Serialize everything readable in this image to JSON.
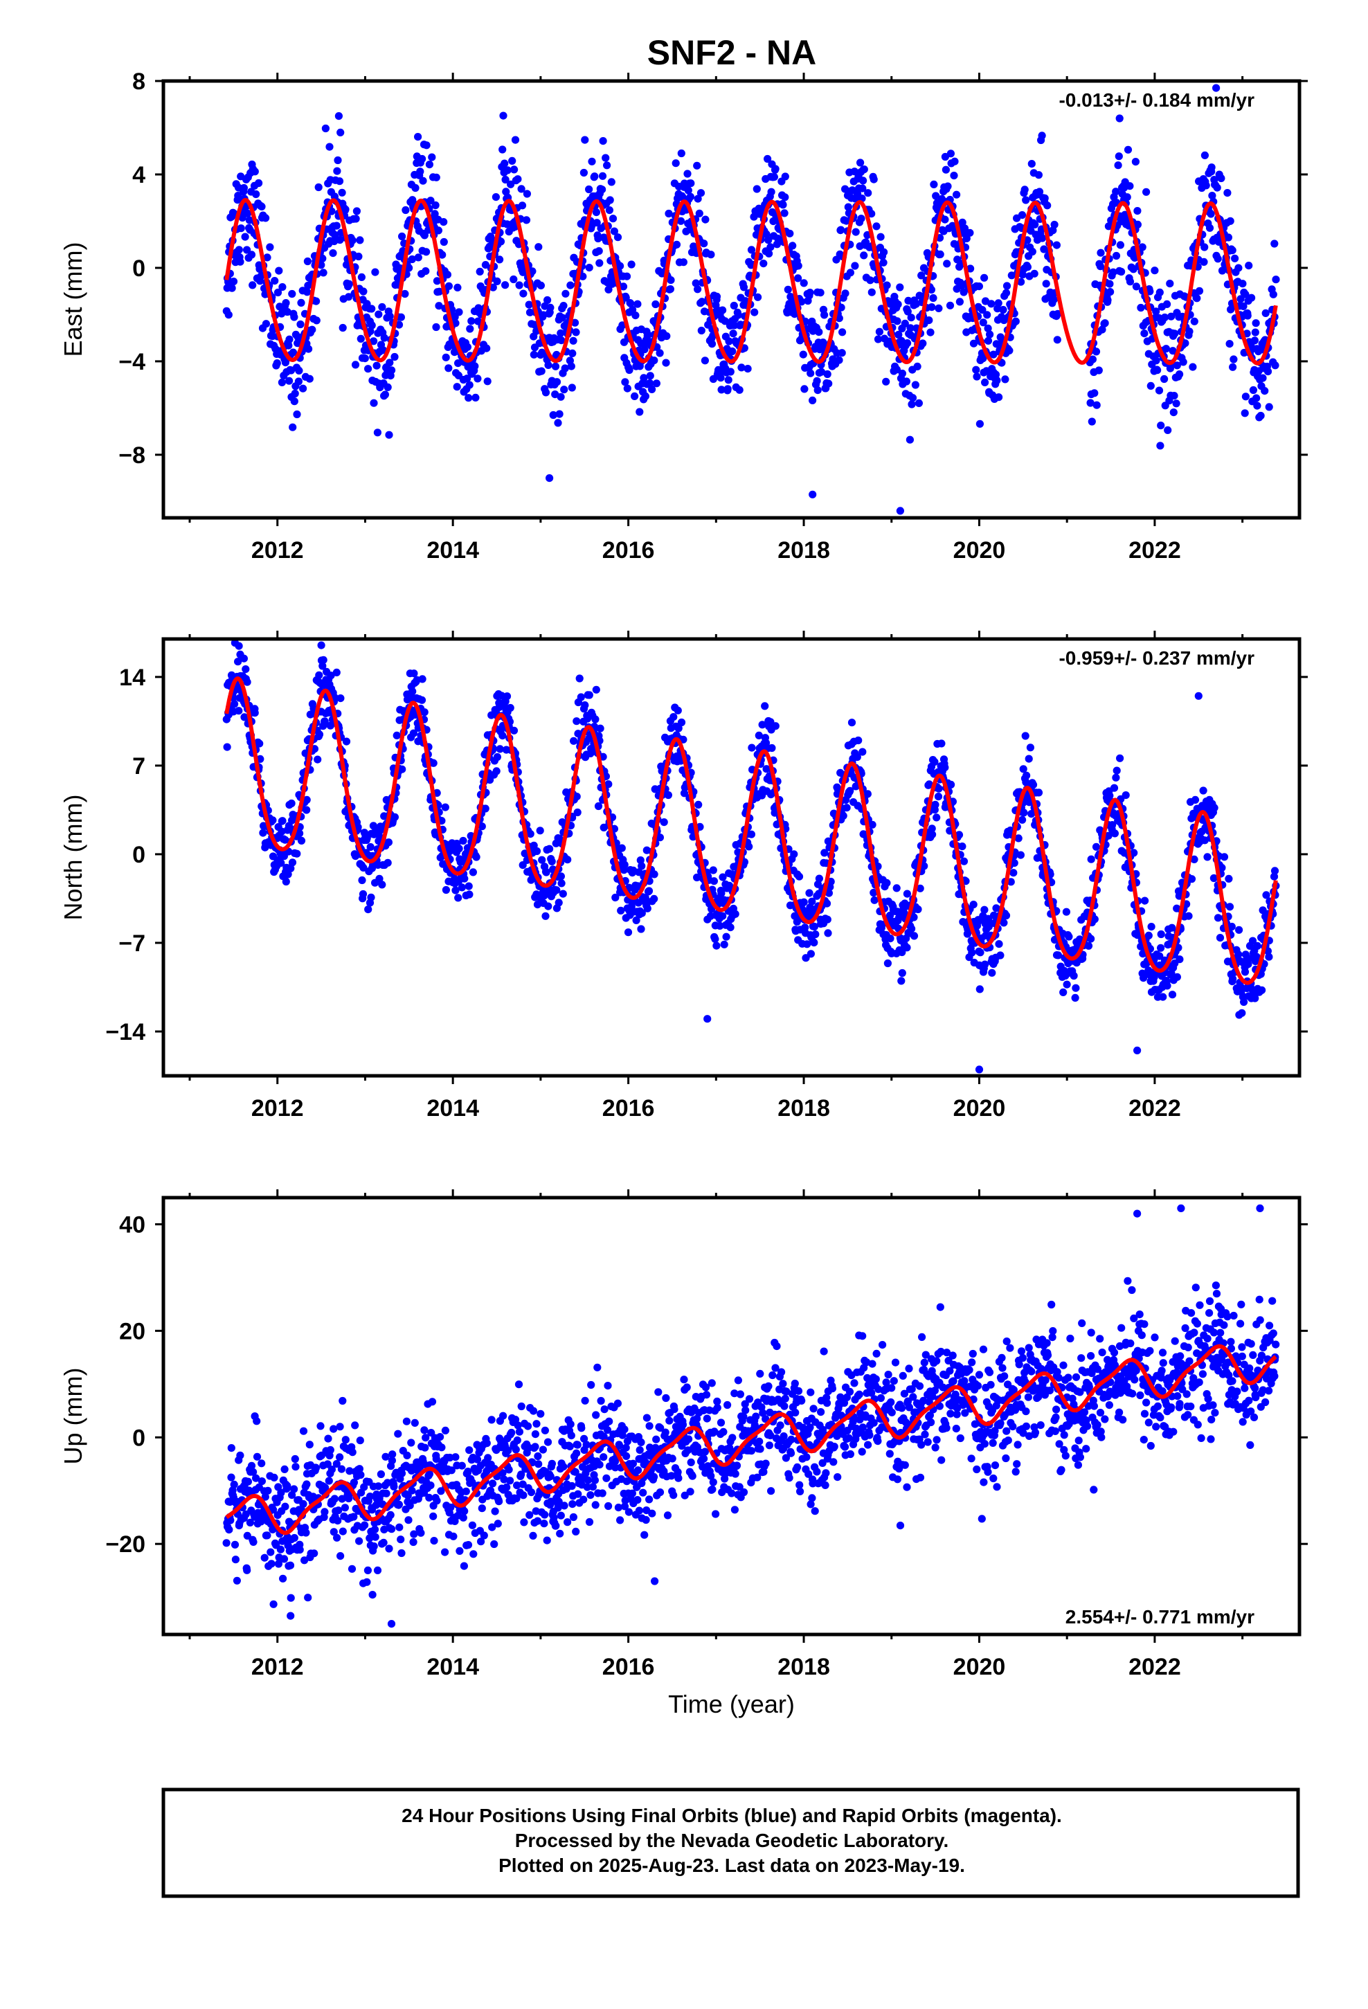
{
  "colors": {
    "points": "#0000ff",
    "fit": "#ff0000",
    "frame": "#000000",
    "background": "#ffffff"
  },
  "figure_title": "SNF2 - NA",
  "footer": {
    "lines": [
      "24 Hour Positions Using Final Orbits (blue) and Rapid Orbits (magenta).",
      "Processed by the Nevada Geodetic Laboratory.",
      "Plotted on 2025-Aug-23. Last data on 2023-May-19."
    ]
  },
  "chart_data": [
    {
      "type": "scatter",
      "panel": "east",
      "title": "SNF2 - NA",
      "xlabel": "",
      "ylabel": "East (mm)",
      "xlim": [
        2010.7,
        2023.65
      ],
      "ylim": [
        -10.7,
        8
      ],
      "xticks": [
        2012,
        2014,
        2016,
        2018,
        2020,
        2022
      ],
      "yticks": [
        -8,
        -4,
        0,
        4,
        8
      ],
      "rate_text": "-0.013+/- 0.184 mm/yr",
      "rate_position": "top-right",
      "data_range": [
        2011.42,
        2023.38
      ],
      "fit": {
        "offset": -0.75,
        "rate": -0.013,
        "annual_amp": 3.4,
        "peak_time": 0.65,
        "semiannual_amp": 0.3,
        "semiannual_peak": 0.1
      },
      "scatter_sd": 1.3,
      "outliers": [
        [
          2012.7,
          6.5
        ],
        [
          2019.1,
          -10.4
        ],
        [
          2018.1,
          -9.7
        ],
        [
          2022.7,
          7.7
        ],
        [
          2015.1,
          -9.0
        ],
        [
          2021.6,
          6.4
        ]
      ]
    },
    {
      "type": "scatter",
      "panel": "north",
      "title": "",
      "xlabel": "",
      "ylabel": "North (mm)",
      "xlim": [
        2010.7,
        2023.65
      ],
      "ylim": [
        -17.5,
        17
      ],
      "xticks": [
        2012,
        2014,
        2016,
        2018,
        2020,
        2022
      ],
      "yticks": [
        -14,
        -7,
        0,
        7,
        14
      ],
      "rate_text": "-0.959+/- 0.237 mm/yr",
      "rate_position": "top-right",
      "data_range": [
        2011.42,
        2023.38
      ],
      "fit": {
        "offset": 6.7,
        "rate": -0.959,
        "ref_year": 2011.42,
        "annual_amp": 6.5,
        "peak_time": 0.55,
        "semiannual_amp": 0.8,
        "semiannual_peak": 0.05
      },
      "scatter_sd": 1.5,
      "outliers": [
        [
          2020.0,
          -17.0
        ],
        [
          2021.8,
          -15.5
        ],
        [
          2016.9,
          -13.0
        ],
        [
          2022.5,
          12.5
        ],
        [
          2012.5,
          16.5
        ]
      ]
    },
    {
      "type": "scatter",
      "panel": "up",
      "title": "",
      "xlabel": "Time (year)",
      "ylabel": "Up (mm)",
      "xlim": [
        2010.7,
        2023.65
      ],
      "ylim": [
        -37,
        45
      ],
      "xticks": [
        2012,
        2014,
        2016,
        2018,
        2020,
        2022
      ],
      "yticks": [
        -20,
        0,
        20,
        40
      ],
      "rate_text": "2.554+/- 0.771 mm/yr",
      "rate_position": "bottom-right",
      "data_range": [
        2011.42,
        2023.38
      ],
      "fit": {
        "offset": -15.5,
        "rate": 2.554,
        "ref_year": 2011.42,
        "annual_amp": 3.5,
        "peak_time": 0.65,
        "semiannual_amp": 1.0,
        "semiannual_peak": 0.3
      },
      "scatter_sd": 5.5,
      "outliers": [
        [
          2013.3,
          -35.0
        ],
        [
          2012.15,
          -33.5
        ],
        [
          2022.3,
          43.0
        ],
        [
          2023.2,
          43.0
        ],
        [
          2016.3,
          -27.0
        ],
        [
          2021.8,
          42.0
        ]
      ]
    }
  ]
}
